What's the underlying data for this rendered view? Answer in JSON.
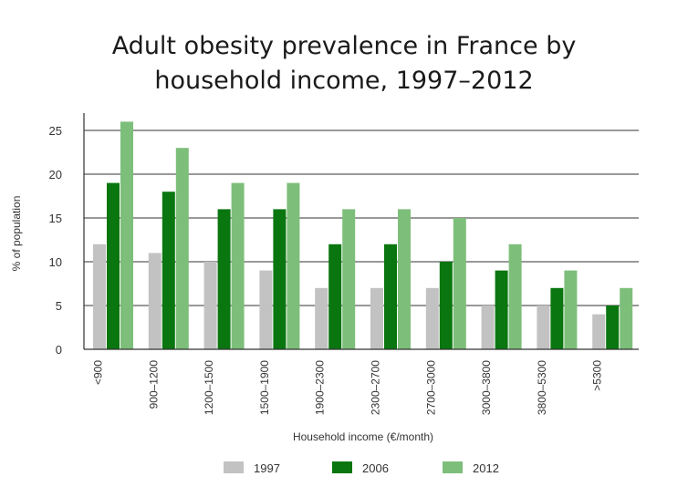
{
  "title": {
    "line1": "Adult obesity prevalence in France by",
    "line2": "household income, 1997–2012"
  },
  "colors": {
    "1997": "#c2c2c2",
    "2006": "#0a760f",
    "2012": "#7dbf7a",
    "grid": "#333333",
    "axis": "#333333"
  },
  "chart_data": {
    "type": "bar",
    "xlabel": "Household income (€/month)",
    "ylabel": "% of population",
    "ylim": [
      0,
      25
    ],
    "yticks": [
      0,
      5,
      10,
      15,
      20,
      25
    ],
    "grid": true,
    "legend_position": "bottom",
    "categories": [
      "<900",
      "900–1200",
      "1200–1500",
      "1500–1900",
      "1900–2300",
      "2300–2700",
      "2700–3000",
      "3000–3800",
      "3800–5300",
      ">5300"
    ],
    "series": [
      {
        "name": "1997",
        "values": [
          12,
          11,
          10,
          9,
          7,
          7,
          7,
          5,
          5,
          4
        ]
      },
      {
        "name": "2006",
        "values": [
          19,
          18,
          16,
          16,
          12,
          12,
          10,
          9,
          7,
          5
        ]
      },
      {
        "name": "2012",
        "values": [
          26,
          23,
          19,
          19,
          16,
          16,
          15,
          12,
          9,
          7
        ]
      }
    ]
  }
}
